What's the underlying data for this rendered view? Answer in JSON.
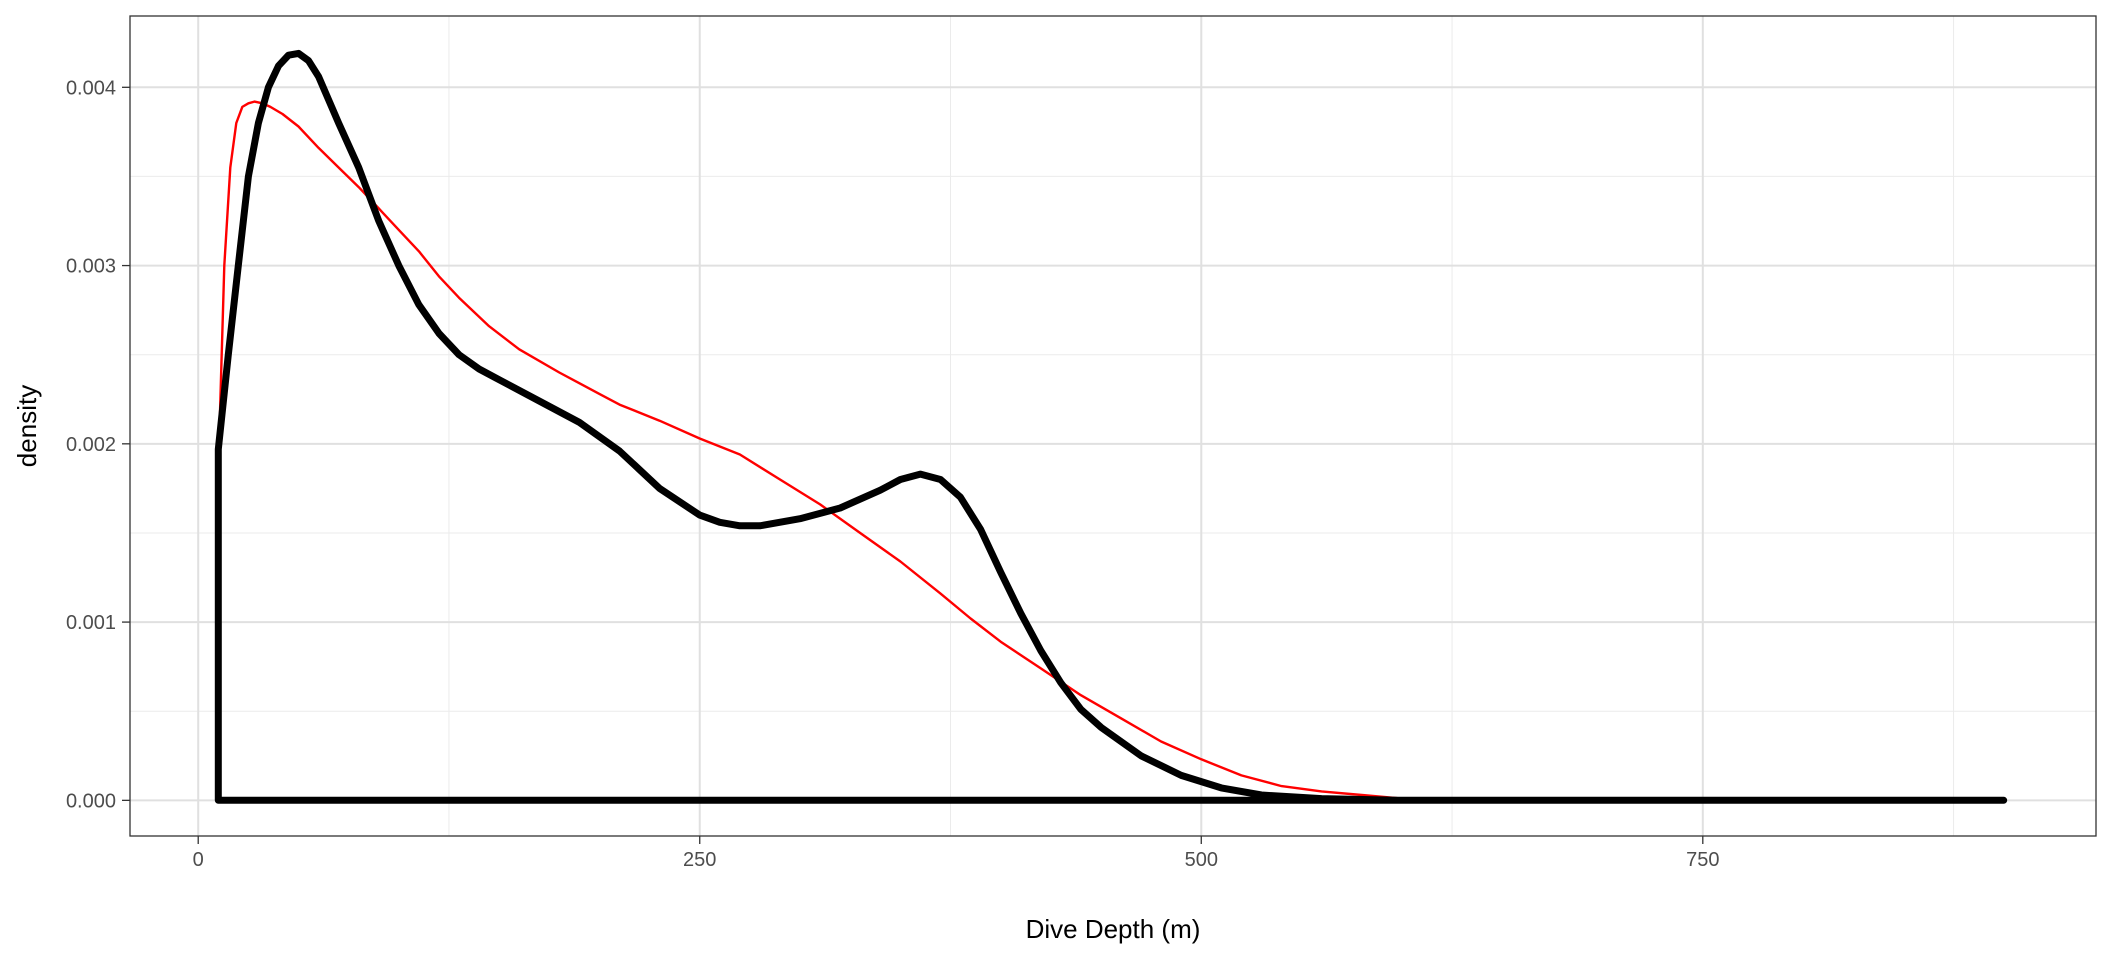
{
  "chart_data": {
    "type": "line",
    "title": "",
    "xlabel": "Dive Depth (m)",
    "ylabel": "density",
    "xlim": [
      -34,
      946
    ],
    "ylim": [
      -0.0002,
      0.0044
    ],
    "x_ticks": [
      0,
      250,
      500,
      750
    ],
    "x_tick_labels": [
      "0",
      "250",
      "500",
      "750"
    ],
    "y_ticks": [
      0.0,
      0.001,
      0.002,
      0.003,
      0.004
    ],
    "y_tick_labels": [
      "0.000",
      "0.001",
      "0.002",
      "0.003",
      "0.004"
    ],
    "x_minor": [
      125,
      375,
      625,
      875
    ],
    "y_minor": [
      0.0005,
      0.0015,
      0.0025,
      0.0035
    ],
    "grid": true,
    "legend": "none",
    "series": [
      {
        "color": "#ff0000",
        "style": "thin",
        "x": [
          10,
          13,
          16,
          19,
          22,
          25,
          28,
          32,
          36,
          42,
          50,
          60,
          70,
          80,
          90,
          100,
          110,
          120,
          130,
          145,
          160,
          180,
          200,
          210,
          230,
          250,
          270,
          290,
          310,
          330,
          350,
          370,
          385,
          400,
          420,
          440,
          460,
          480,
          500,
          520,
          540,
          560,
          580,
          600,
          620,
          640,
          700,
          800,
          880
        ],
        "y": [
          0.00185,
          0.003,
          0.00355,
          0.0038,
          0.00389,
          0.00391,
          0.00392,
          0.00391,
          0.00389,
          0.00385,
          0.00378,
          0.00366,
          0.00355,
          0.00344,
          0.00332,
          0.0032,
          0.00308,
          0.00294,
          0.00282,
          0.00266,
          0.00253,
          0.0024,
          0.00228,
          0.00222,
          0.00213,
          0.00203,
          0.00194,
          0.0018,
          0.00166,
          0.0015,
          0.00134,
          0.00116,
          0.00102,
          0.00089,
          0.00074,
          0.00059,
          0.00046,
          0.00033,
          0.00023,
          0.00014,
          8e-05,
          5e-05,
          3e-05,
          1e-05,
          5e-06,
          0.0,
          0.0,
          0.0,
          0.0
        ]
      },
      {
        "color": "#000000",
        "style": "thick",
        "x": [
          10,
          10,
          15,
          20,
          25,
          30,
          35,
          40,
          45,
          50,
          55,
          60,
          70,
          80,
          90,
          100,
          110,
          120,
          130,
          140,
          150,
          170,
          190,
          210,
          230,
          250,
          260,
          270,
          280,
          300,
          320,
          340,
          350,
          360,
          370,
          380,
          390,
          400,
          410,
          420,
          430,
          440,
          450,
          470,
          490,
          510,
          530,
          560,
          600,
          650,
          700,
          800,
          900,
          900,
          10
        ],
        "y": [
          0.0,
          0.00197,
          0.0025,
          0.003,
          0.0035,
          0.0038,
          0.004,
          0.00412,
          0.00418,
          0.00419,
          0.00415,
          0.00406,
          0.0038,
          0.00355,
          0.00325,
          0.003,
          0.00278,
          0.00262,
          0.0025,
          0.00242,
          0.00236,
          0.00224,
          0.00212,
          0.00196,
          0.00175,
          0.0016,
          0.00156,
          0.00154,
          0.00154,
          0.00158,
          0.00164,
          0.00174,
          0.0018,
          0.00183,
          0.0018,
          0.0017,
          0.00152,
          0.00128,
          0.00105,
          0.00084,
          0.00066,
          0.00051,
          0.00041,
          0.00025,
          0.00014,
          7e-05,
          3e-05,
          1e-05,
          0.0,
          0.0,
          0.0,
          0.0,
          0.0,
          0.0,
          0.0
        ]
      }
    ]
  }
}
